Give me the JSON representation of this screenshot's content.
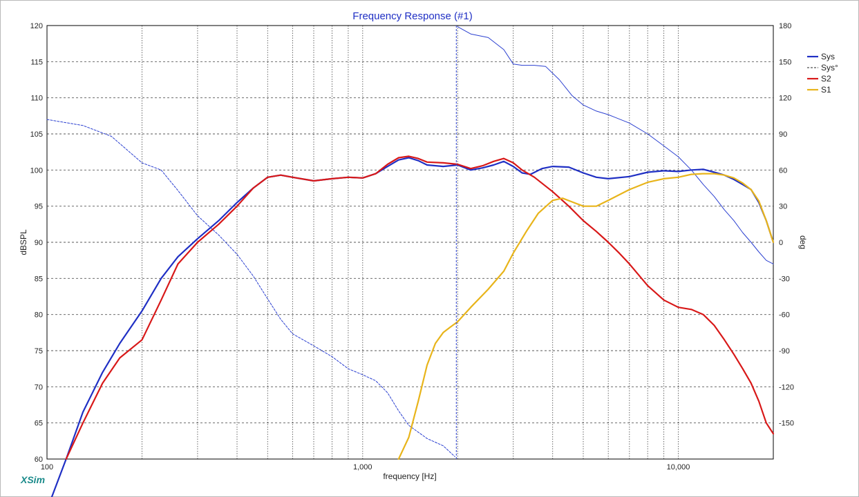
{
  "chart_data": {
    "type": "line",
    "title": "Frequency Response (#1)",
    "xlabel": "frequency [Hz]",
    "ylabel": "dBSPL",
    "y2label": "deg",
    "xscale": "log",
    "xlim": [
      100,
      20000
    ],
    "ylim": [
      60,
      120
    ],
    "y2lim": [
      -180,
      180
    ],
    "x_ticks": [
      100,
      1000,
      10000
    ],
    "x_tick_labels": [
      "100",
      "1,000",
      "10,000"
    ],
    "y_ticks": [
      60,
      65,
      70,
      75,
      80,
      85,
      90,
      95,
      100,
      105,
      110,
      115,
      120
    ],
    "y2_ticks": [
      -150,
      -120,
      -90,
      -60,
      -30,
      0,
      30,
      60,
      90,
      120,
      150,
      180
    ],
    "grid": true,
    "legend_position": "top-right",
    "colors": {
      "Sys": "#1f2fc4",
      "Sys°": "#2a3fd0",
      "S2": "#d81818",
      "S1": "#e8b41a"
    },
    "series": [
      {
        "name": "Sys",
        "axis": "left",
        "style": "solid",
        "x": [
          100,
          115,
          130,
          150,
          170,
          200,
          230,
          260,
          300,
          350,
          400,
          450,
          500,
          550,
          600,
          700,
          800,
          900,
          1000,
          1100,
          1200,
          1300,
          1400,
          1500,
          1600,
          1800,
          2000,
          2200,
          2400,
          2600,
          2800,
          3000,
          3200,
          3400,
          3700,
          4000,
          4500,
          5000,
          5500,
          6000,
          7000,
          8000,
          9000,
          10000,
          11000,
          12000,
          13000,
          14000,
          15000,
          16000,
          17000,
          18000,
          19000,
          20000
        ],
        "values": [
          53,
          60,
          66.5,
          72,
          76,
          80.5,
          85,
          88,
          90.5,
          93,
          95.5,
          97.5,
          99,
          99.3,
          99,
          98.5,
          98.8,
          99,
          98.9,
          99.5,
          100.5,
          101.4,
          101.7,
          101.3,
          100.7,
          100.5,
          100.7,
          100,
          100.3,
          100.7,
          101.2,
          100.5,
          99.6,
          99.4,
          100.2,
          100.5,
          100.4,
          99.6,
          99,
          98.8,
          99.1,
          99.7,
          99.9,
          99.8,
          100,
          100.1,
          99.7,
          99.3,
          98.7,
          98,
          97.3,
          95.5,
          93,
          90
        ]
      },
      {
        "name": "Sys°",
        "axis": "right",
        "style": "dashed",
        "x": [
          100,
          130,
          160,
          200,
          230,
          260,
          300,
          350,
          400,
          450,
          500,
          550,
          600,
          700,
          800,
          900,
          1000,
          1100,
          1200,
          1300,
          1400,
          1600,
          1800,
          1960
        ],
        "values": [
          102,
          97,
          88,
          66,
          60,
          43,
          22,
          6,
          -10,
          -28,
          -47,
          -64,
          -76,
          -86,
          -95,
          -105,
          -110,
          -115,
          -125,
          -140,
          -152,
          -163,
          -169,
          -178
        ]
      },
      {
        "name": "Sys°",
        "axis": "right",
        "style": "solid",
        "x": [
          2000,
          2200,
          2500,
          2800,
          3000,
          3200,
          3500,
          3800,
          4200,
          4600,
          5000,
          5500,
          6000,
          7000,
          8000,
          9000,
          10000,
          11000,
          12000,
          13000,
          14000,
          15000,
          16000,
          17000,
          18000,
          19000,
          20000
        ],
        "values": [
          179,
          173,
          170,
          160,
          148,
          147,
          147,
          146,
          135,
          122,
          114,
          109,
          106,
          99,
          90,
          80,
          71,
          60,
          48,
          38,
          27,
          18,
          8,
          0,
          -8,
          -15,
          -18
        ]
      },
      {
        "name": "S2",
        "axis": "left",
        "style": "solid",
        "x": [
          115,
          130,
          150,
          170,
          200,
          230,
          260,
          300,
          350,
          400,
          450,
          500,
          550,
          600,
          700,
          800,
          900,
          1000,
          1100,
          1200,
          1300,
          1400,
          1500,
          1600,
          1800,
          2000,
          2200,
          2400,
          2600,
          2800,
          3000,
          3200,
          3500,
          4000,
          4500,
          5000,
          5500,
          6000,
          6500,
          7000,
          8000,
          9000,
          10000,
          11000,
          12000,
          13000,
          14000,
          15000,
          16000,
          17000,
          18000,
          19000,
          20000
        ],
        "values": [
          60,
          65,
          70.5,
          74,
          76.5,
          82,
          87,
          90,
          92.5,
          95,
          97.5,
          99,
          99.3,
          99,
          98.5,
          98.8,
          99,
          98.9,
          99.5,
          100.8,
          101.7,
          101.9,
          101.6,
          101.1,
          101,
          100.8,
          100.2,
          100.6,
          101.2,
          101.6,
          101,
          100,
          99,
          97,
          95,
          93,
          91.5,
          90,
          88.5,
          87,
          84,
          82,
          81,
          80.7,
          80,
          78.5,
          76.5,
          74.5,
          72.5,
          70.5,
          68,
          65,
          63.5
        ]
      },
      {
        "name": "S1",
        "axis": "left",
        "style": "solid",
        "x": [
          1300,
          1400,
          1500,
          1600,
          1700,
          1800,
          1900,
          2000,
          2200,
          2500,
          2800,
          3000,
          3300,
          3600,
          4000,
          4300,
          4600,
          5000,
          5500,
          6000,
          7000,
          8000,
          9000,
          10000,
          11000,
          12000,
          13000,
          14000,
          15000,
          16000,
          17000,
          18000,
          19000,
          20000
        ],
        "values": [
          60,
          63,
          68,
          73,
          76,
          77.5,
          78.3,
          79,
          81,
          83.5,
          86,
          88.5,
          91.5,
          94,
          95.8,
          96.1,
          95.6,
          95,
          95,
          95.8,
          97.3,
          98.3,
          98.8,
          99,
          99.4,
          99.5,
          99.5,
          99.3,
          98.9,
          98.2,
          97.3,
          95.7,
          93,
          90
        ]
      }
    ]
  },
  "ui": {
    "brand": "XSim"
  }
}
